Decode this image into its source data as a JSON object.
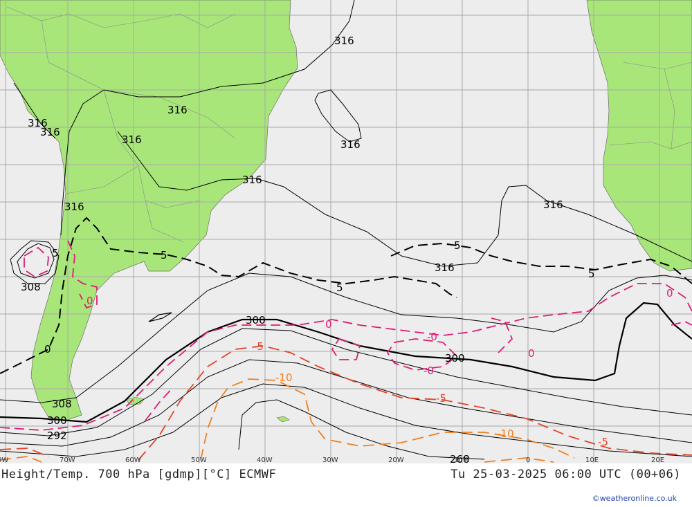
{
  "map": {
    "colors": {
      "ocean": "#ededed",
      "land": "#a8e67a",
      "grid": "#a8a8a8",
      "height_contour": "#000000",
      "temp_zero": "#dd1c77",
      "temp_minus5": "#e8412a",
      "temp_minus10": "#f07f1e"
    },
    "longitude_ticks": [
      "0W",
      "70W",
      "60W",
      "50W",
      "40W",
      "30W",
      "20W",
      "10W",
      "0",
      "10E",
      "20E"
    ],
    "height_labels": [
      "316",
      "316",
      "316",
      "316",
      "316",
      "316",
      "316",
      "316",
      "316",
      "316",
      "308",
      "308",
      "300",
      "300",
      "300",
      "292",
      "268"
    ],
    "temp_labels": [
      "5",
      "5",
      "5",
      "5",
      "5",
      "0",
      "0",
      "0",
      "-0",
      "-0",
      "0",
      "0",
      "-5",
      "-5",
      "-10",
      "-10",
      "-5"
    ]
  },
  "footer": {
    "title": "Height/Temp. 700 hPa [gdmp][°C] ECMWF",
    "valid_time": "Tu 25-03-2025 06:00 UTC (00+06)",
    "credit": "©weatheronline.co.uk"
  }
}
